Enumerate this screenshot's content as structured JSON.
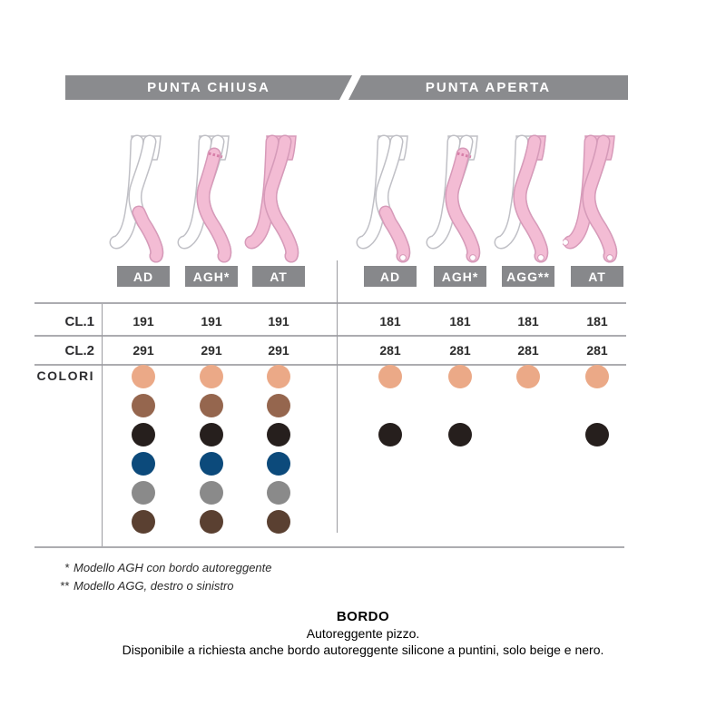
{
  "header": {
    "left": "PUNTA CHIUSA",
    "right": "PUNTA APERTA"
  },
  "rows": {
    "cl1_label": "CL.1",
    "cl2_label": "CL.2",
    "colors_label": "COLORI"
  },
  "groups": [
    {
      "name": "punta-chiusa",
      "toe": "closed",
      "columns": [
        {
          "label": "AD",
          "variant": "ad"
        },
        {
          "label": "AGH*",
          "variant": "agh"
        },
        {
          "label": "AT",
          "variant": "at"
        }
      ],
      "cl1": [
        "191",
        "191",
        "191"
      ],
      "cl2": [
        "291",
        "291",
        "291"
      ],
      "colors_matrix": [
        [
          1,
          1,
          1
        ],
        [
          1,
          1,
          1
        ],
        [
          1,
          1,
          1
        ],
        [
          1,
          1,
          1
        ],
        [
          1,
          1,
          1
        ],
        [
          1,
          1,
          1
        ]
      ]
    },
    {
      "name": "punta-aperta",
      "toe": "open",
      "columns": [
        {
          "label": "AD",
          "variant": "ad"
        },
        {
          "label": "AGH*",
          "variant": "agh"
        },
        {
          "label": "AGG**",
          "variant": "agg"
        },
        {
          "label": "AT",
          "variant": "at"
        }
      ],
      "cl1": [
        "181",
        "181",
        "181",
        "181"
      ],
      "cl2": [
        "281",
        "281",
        "281",
        "281"
      ],
      "colors_matrix": [
        [
          1,
          1,
          1,
          1
        ],
        [
          0,
          0,
          0,
          0
        ],
        [
          1,
          1,
          0,
          1
        ],
        [
          0,
          0,
          0,
          0
        ],
        [
          0,
          0,
          0,
          0
        ],
        [
          0,
          0,
          0,
          0
        ]
      ]
    }
  ],
  "palette": [
    {
      "name": "beige",
      "hex": "#EBA987"
    },
    {
      "name": "marrone",
      "hex": "#95664E"
    },
    {
      "name": "nero",
      "hex": "#261F1D"
    },
    {
      "name": "blu",
      "hex": "#0C4A7B"
    },
    {
      "name": "grigio",
      "hex": "#8A8A8A"
    },
    {
      "name": "marrone-scuro",
      "hex": "#5A4031"
    }
  ],
  "footnotes": [
    {
      "mark": "*",
      "text": "Modello AGH con bordo autoreggente"
    },
    {
      "mark": "**",
      "text": "Modello AGG, destro o sinistro"
    }
  ],
  "bordo": {
    "title": "BORDO",
    "line1": "Autoreggente pizzo.",
    "line2": "Disponibile a richiesta anche bordo autoreggente silicone a puntini, solo beige e nero."
  },
  "colors": {
    "bar": "#8A8B8E",
    "model_box": "#87888B",
    "table_line": "#ACACB0",
    "text_dark": "#2B2B2B",
    "stocking_pink": "#F3BCD4",
    "stocking_pink_edge": "#D79AB9",
    "lace_band": "#D77FA8",
    "leg_outline": "#C0C0C6"
  }
}
